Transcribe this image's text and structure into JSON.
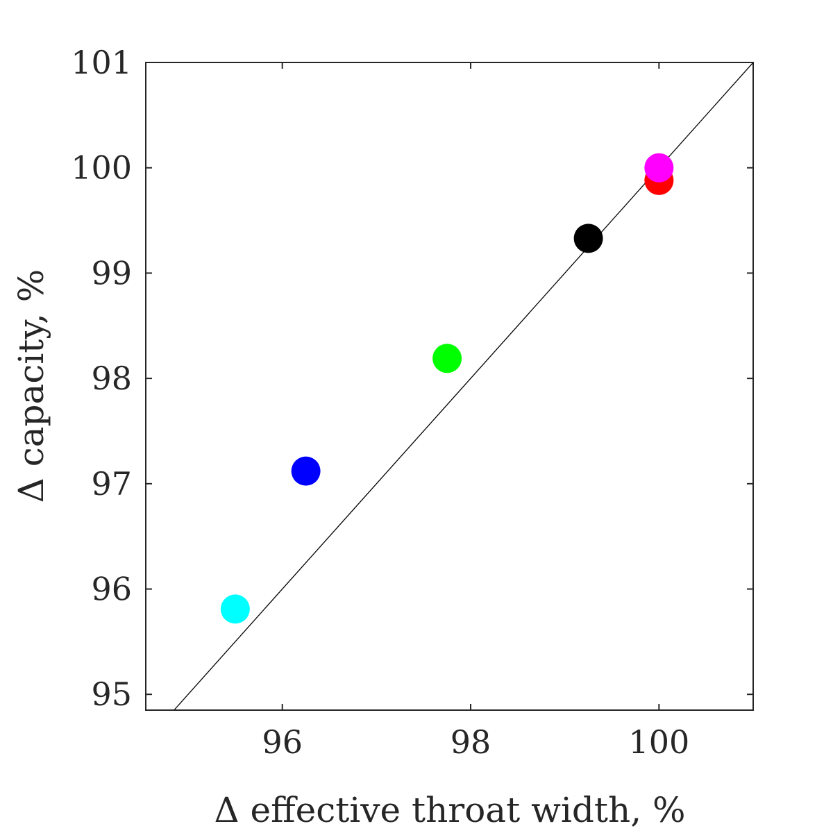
{
  "chart_data": {
    "type": "scatter",
    "title": "",
    "xlabel": "Δ effective throat width, %",
    "ylabel": "Δ capacity, %",
    "xlim": [
      94.55,
      101.0
    ],
    "ylim": [
      94.85,
      101.0
    ],
    "x_ticks": [
      96,
      98,
      100
    ],
    "y_ticks": [
      95,
      96,
      97,
      98,
      99,
      100,
      101
    ],
    "x_tick_labels": [
      "96",
      "98",
      "100"
    ],
    "y_tick_labels": [
      "95",
      "96",
      "97",
      "98",
      "99",
      "100",
      "101"
    ],
    "grid": false,
    "reference_line": {
      "type": "identity",
      "color": "#000000"
    },
    "points": [
      {
        "x": 95.5,
        "y": 95.81,
        "color": "#00ffff"
      },
      {
        "x": 96.25,
        "y": 97.12,
        "color": "#0000ff"
      },
      {
        "x": 97.75,
        "y": 98.19,
        "color": "#00ff00"
      },
      {
        "x": 99.25,
        "y": 99.33,
        "color": "#000000"
      },
      {
        "x": 100.0,
        "y": 99.88,
        "color": "#ff0000"
      },
      {
        "x": 100.0,
        "y": 100.0,
        "color": "#ff00ff"
      }
    ]
  }
}
